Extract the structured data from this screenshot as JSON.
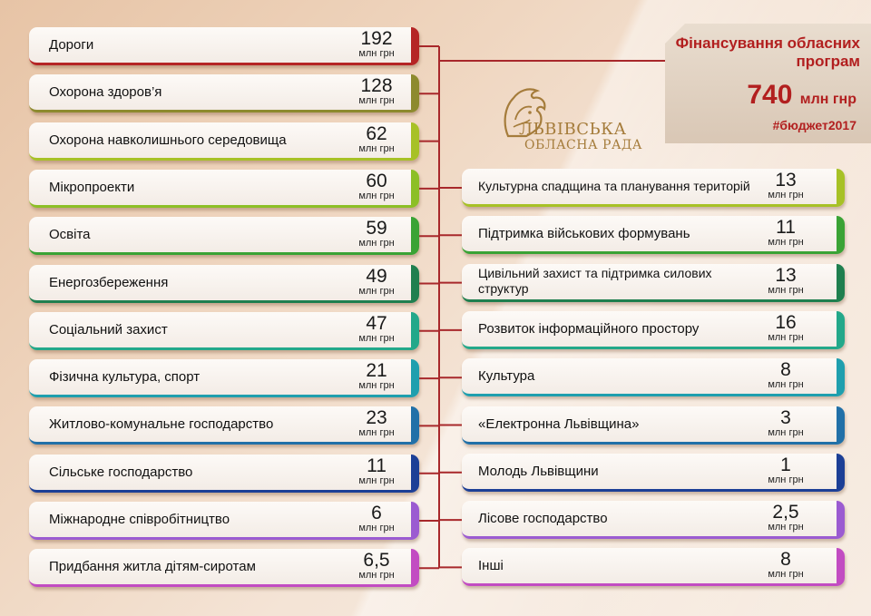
{
  "header": {
    "title": "Фінансування обласних програм",
    "total_value": "740",
    "total_unit": "млн гнр",
    "hashtag": "#бюджет2017"
  },
  "logo": {
    "line1": "ЛЬВІВСЬКА",
    "line2": "ОБЛАСНА РАДА",
    "icon": "lion-icon"
  },
  "unit_label": "млн грн",
  "chart_data": {
    "type": "table",
    "title": "Фінансування обласних програм",
    "unit": "млн грн",
    "total": 740,
    "left": [
      {
        "category": "Дороги",
        "value": 192,
        "display": "192",
        "color": "#b52525"
      },
      {
        "category": "Охорона здоров’я",
        "value": 128,
        "display": "128",
        "color": "#8d8a2e"
      },
      {
        "category": "Охорона навколишнього середовища",
        "value": 62,
        "display": "62",
        "color": "#a7c126"
      },
      {
        "category": "Мікропроекти",
        "value": 60,
        "display": "60",
        "color": "#8cbf26"
      },
      {
        "category": "Освіта",
        "value": 59,
        "display": "59",
        "color": "#3aa335"
      },
      {
        "category": "Енергозбереження",
        "value": 49,
        "display": "49",
        "color": "#1f7f4f"
      },
      {
        "category": "Соціальний захист",
        "value": 47,
        "display": "47",
        "color": "#23a88a"
      },
      {
        "category": "Фізична культура, спорт",
        "value": 21,
        "display": "21",
        "color": "#1f9fae"
      },
      {
        "category": "Житлово-комунальне господарство",
        "value": 23,
        "display": "23",
        "color": "#2170a8"
      },
      {
        "category": "Сільське господарство",
        "value": 11,
        "display": "11",
        "color": "#1c3f96"
      },
      {
        "category": "Міжнародне співробітництво",
        "value": 6,
        "display": "6",
        "color": "#9b5bd1"
      },
      {
        "category": "Придбання житла дітям-сиротам",
        "value": 6.5,
        "display": "6,5",
        "color": "#c24cc2"
      }
    ],
    "right": [
      {
        "category": "Культурна спадщина та планування територій",
        "value": 13,
        "display": "13",
        "color": "#a7c126"
      },
      {
        "category": "Підтримка військових формувань",
        "value": 11,
        "display": "11",
        "color": "#3aa335"
      },
      {
        "category": "Цивільний захист та підтримка силових структур",
        "value": 13,
        "display": "13",
        "color": "#1f7f4f"
      },
      {
        "category": "Розвиток інформаційного простору",
        "value": 16,
        "display": "16",
        "color": "#23a88a"
      },
      {
        "category": "Культура",
        "value": 8,
        "display": "8",
        "color": "#1f9fae"
      },
      {
        "category": "«Електронна Львівщина»",
        "value": 3,
        "display": "3",
        "color": "#2170a8"
      },
      {
        "category": "Молодь Львівщини",
        "value": 1,
        "display": "1",
        "color": "#1c3f96"
      },
      {
        "category": "Лісове господарство",
        "value": 2.5,
        "display": "2,5",
        "color": "#9b5bd1"
      },
      {
        "category": "Інші",
        "value": 8,
        "display": "8",
        "color": "#c24cc2"
      }
    ]
  }
}
